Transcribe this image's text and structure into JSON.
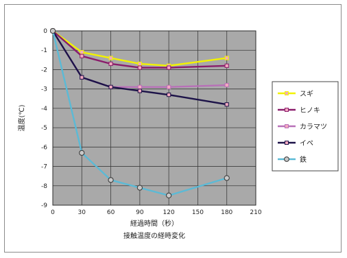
{
  "chart_data": {
    "type": "line",
    "title": "接触温度の経時変化",
    "xlabel": "経過時間（秒）",
    "ylabel": "温度(℃)",
    "xlim": [
      0,
      210
    ],
    "ylim": [
      -9,
      0
    ],
    "x_ticks": [
      "0",
      "30",
      "60",
      "90",
      "120",
      "150",
      "180",
      "210"
    ],
    "y_ticks": [
      "0",
      "-1",
      "-2",
      "-3",
      "-4",
      "-5",
      "-6",
      "-7",
      "-8",
      "-9"
    ],
    "grid": true,
    "legend_position": "right",
    "x": [
      0,
      30,
      60,
      90,
      120,
      180
    ],
    "series": [
      {
        "name": "スギ",
        "color": "#f2f200",
        "marker": "square",
        "values": [
          0,
          -1.1,
          -1.4,
          -1.7,
          -1.8,
          -1.4
        ]
      },
      {
        "name": "ヒノキ",
        "color": "#8a1c6b",
        "marker": "square",
        "values": [
          0,
          -1.3,
          -1.7,
          -1.9,
          -1.9,
          -1.8
        ]
      },
      {
        "name": "カラマツ",
        "color": "#b870b8",
        "marker": "square",
        "values": [
          0,
          -2.4,
          -2.9,
          -2.9,
          -2.9,
          -2.8
        ]
      },
      {
        "name": "イペ",
        "color": "#1c1248",
        "marker": "square",
        "values": [
          0,
          -2.4,
          -2.9,
          -3.1,
          -3.3,
          -3.8
        ]
      },
      {
        "name": "鉄",
        "color": "#5bbad6",
        "marker": "circle",
        "values": [
          0,
          -6.3,
          -7.7,
          -8.1,
          -8.5,
          -7.6
        ]
      }
    ]
  }
}
